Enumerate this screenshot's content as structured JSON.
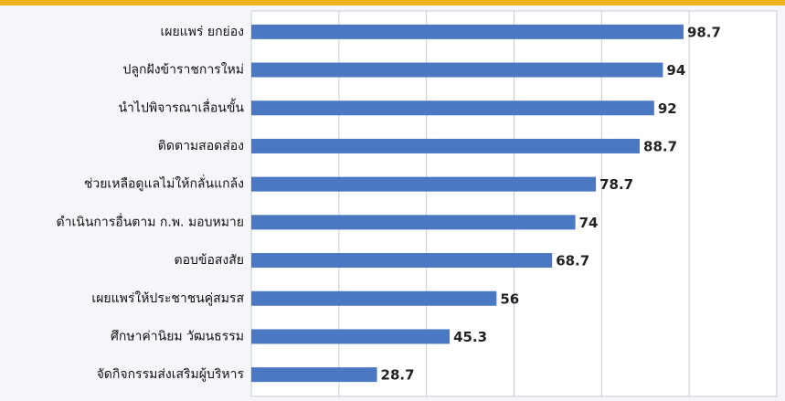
{
  "chart_data": {
    "type": "hbar",
    "categories": [
      "เผยแพร่ ยกย่อง",
      "ปลูกฝังข้าราชการใหม่",
      "นำไปพิจารณาเลื่อนขั้น",
      "ติดตามสอดส่อง",
      "ช่วยเหลือดูแลไม่ให้กลั่นแกล้ง",
      "ดำเนินการอื่นตาม ก.พ. มอบหมาย",
      "ตอบข้อสงสัย",
      "เผยแพร่ให้ประชาชนคู่สมรส",
      "ศึกษาค่านิยม วัฒนธรรม",
      "จัดกิจกรรมส่งเสริมผู้บริหาร"
    ],
    "values": [
      98.7,
      94,
      92,
      88.7,
      78.7,
      74,
      68.7,
      56,
      45.3,
      28.7
    ],
    "color": "#4a78c2",
    "xlim": [
      0,
      120
    ],
    "xticks": [
      0,
      20,
      40,
      60,
      80,
      100,
      120
    ],
    "grid": true
  }
}
